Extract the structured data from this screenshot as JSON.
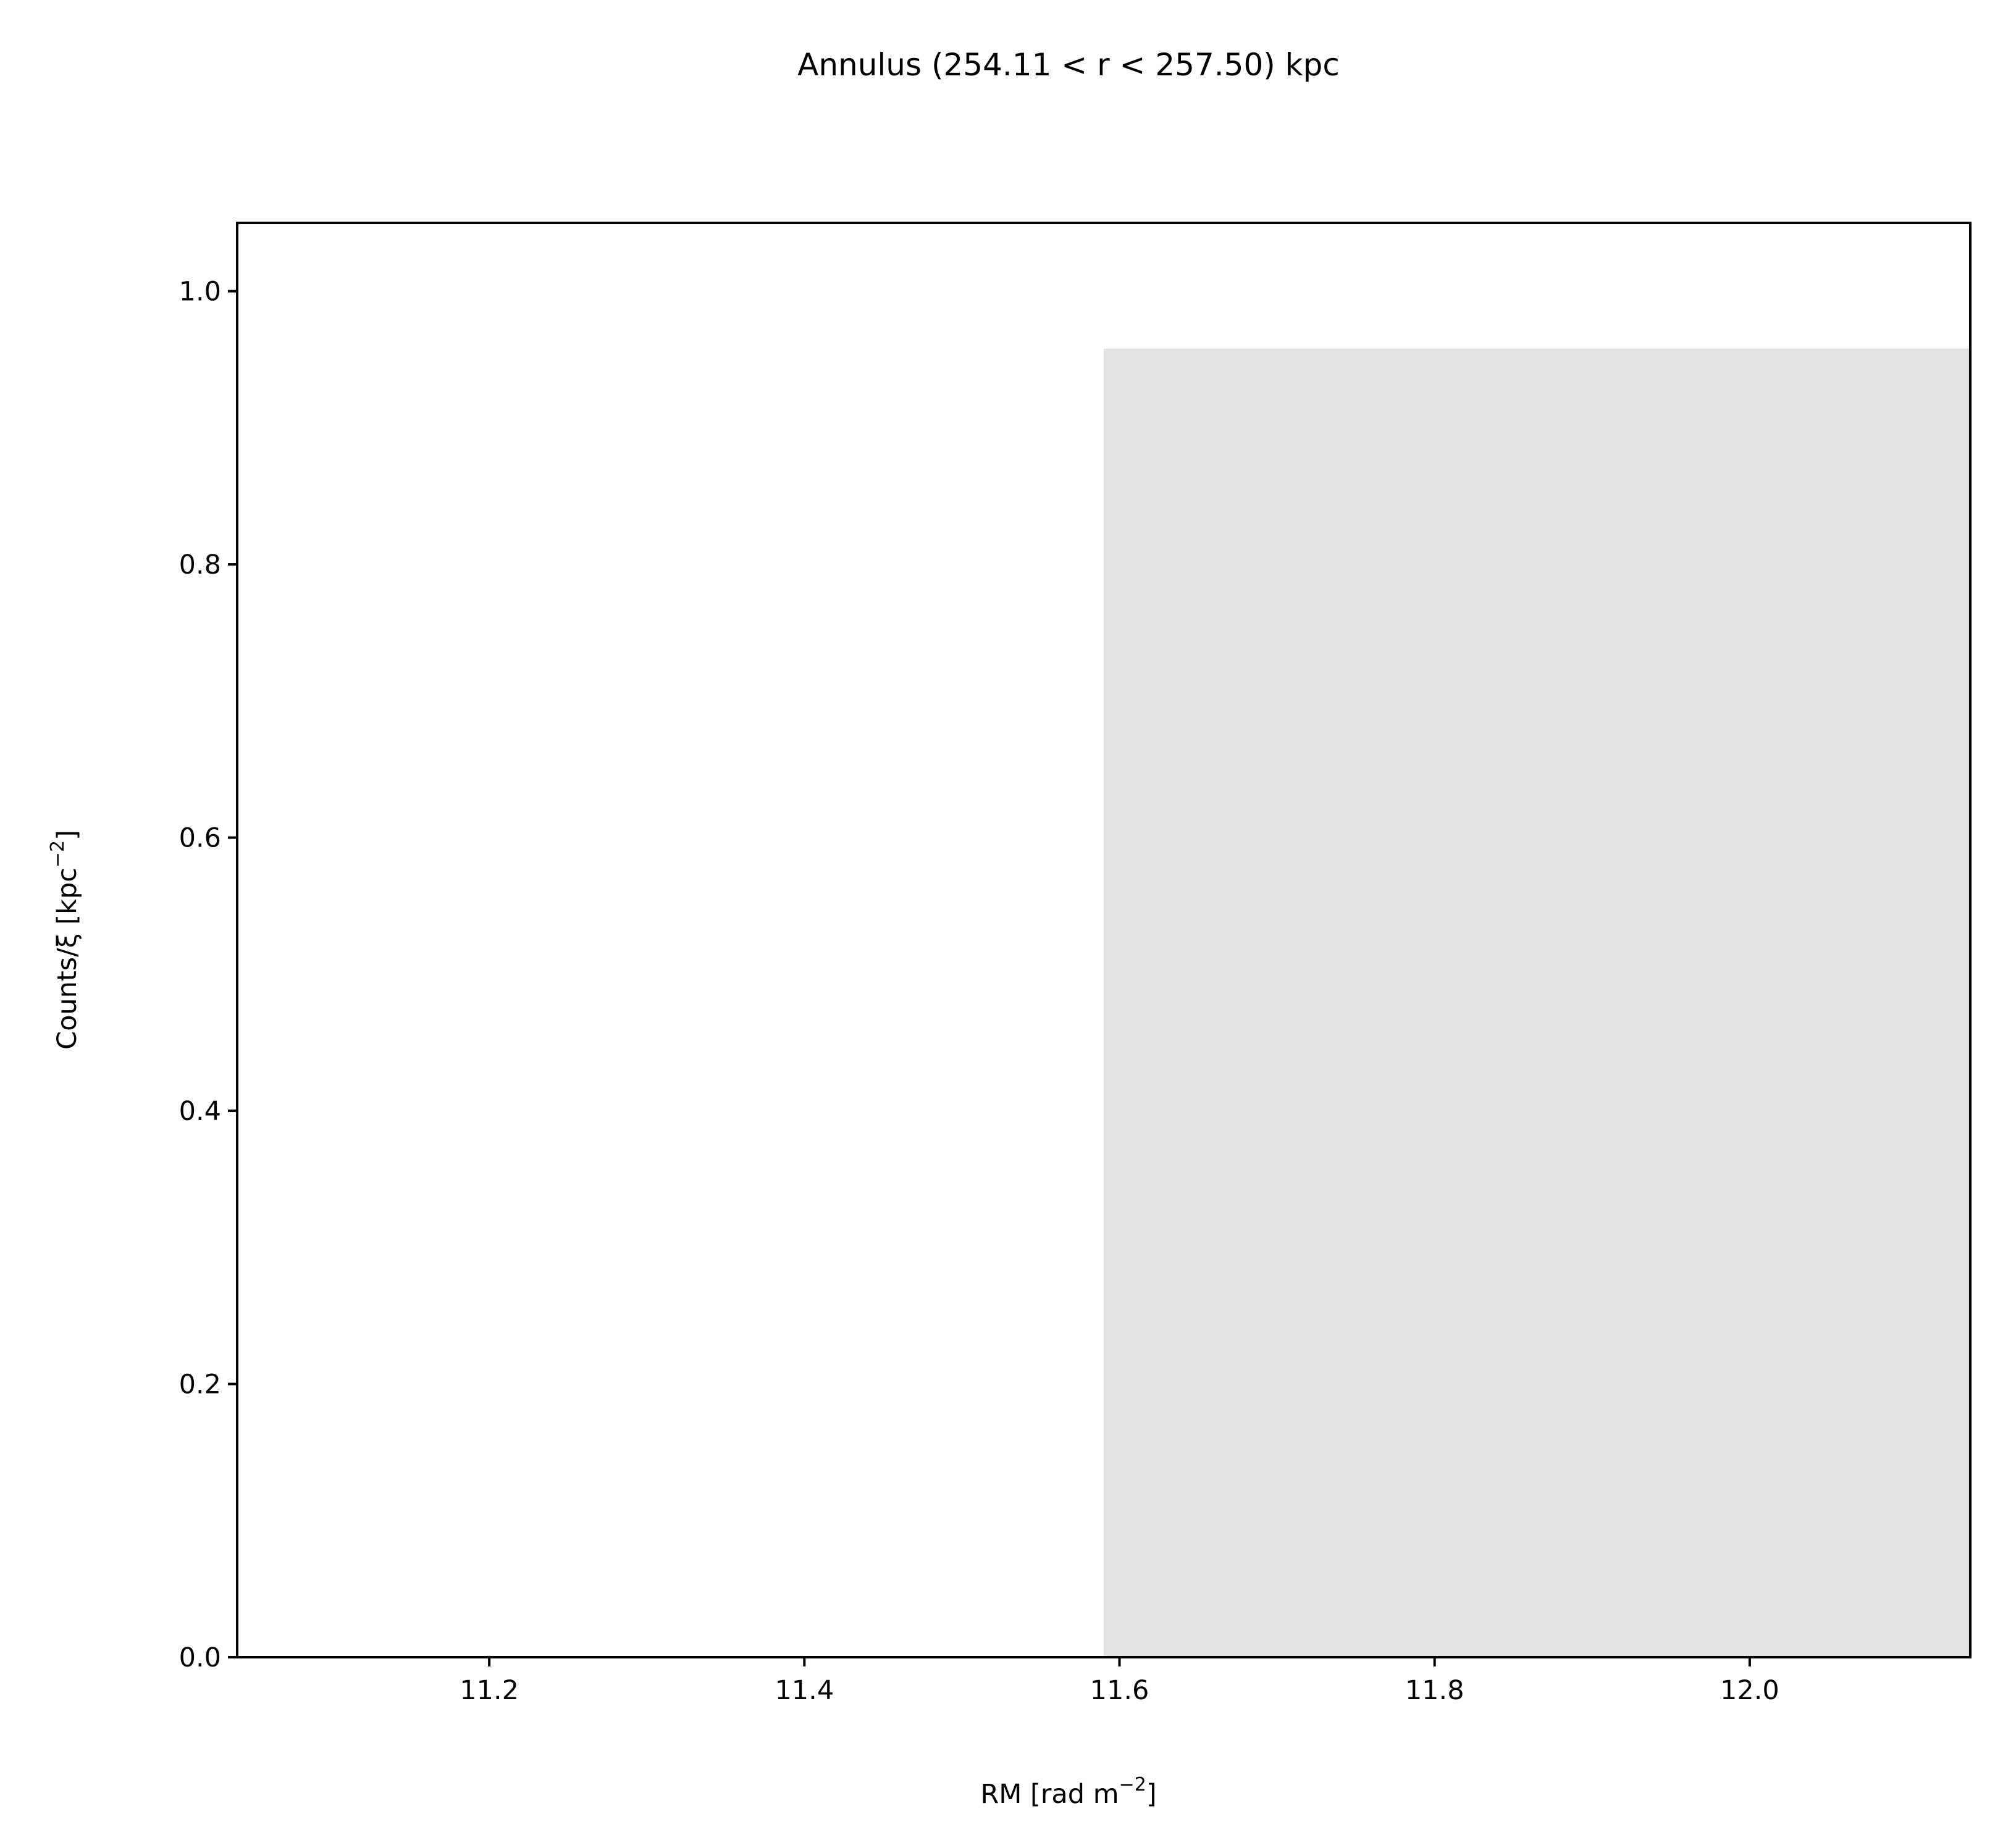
{
  "chart_data": {
    "type": "bar",
    "title": "Annulus (254.11 < r < 257.50) kpc",
    "xlabel": {
      "pre": "RM [rad m",
      "sup": "−2",
      "post": "]"
    },
    "ylabel": {
      "pre": "Counts/ξ [kpc",
      "sup": "−2",
      "post": "]"
    },
    "xlim": [
      11.04,
      12.14
    ],
    "ylim": [
      0.0,
      1.05
    ],
    "xticks": [
      {
        "value": 11.2,
        "label": "11.2"
      },
      {
        "value": 11.4,
        "label": "11.4"
      },
      {
        "value": 11.6,
        "label": "11.6"
      },
      {
        "value": 11.8,
        "label": "11.8"
      },
      {
        "value": 12.0,
        "label": "12.0"
      }
    ],
    "yticks": [
      {
        "value": 0.0,
        "label": "0.0"
      },
      {
        "value": 0.2,
        "label": "0.2"
      },
      {
        "value": 0.4,
        "label": "0.4"
      },
      {
        "value": 0.6,
        "label": "0.6"
      },
      {
        "value": 0.8,
        "label": "0.8"
      },
      {
        "value": 1.0,
        "label": "1.0"
      }
    ],
    "bars": [
      {
        "x0": 11.59,
        "x1": 12.14,
        "value": 0.958
      }
    ],
    "bar_color": "#e3e3e3",
    "grid": false,
    "legend": "none"
  }
}
